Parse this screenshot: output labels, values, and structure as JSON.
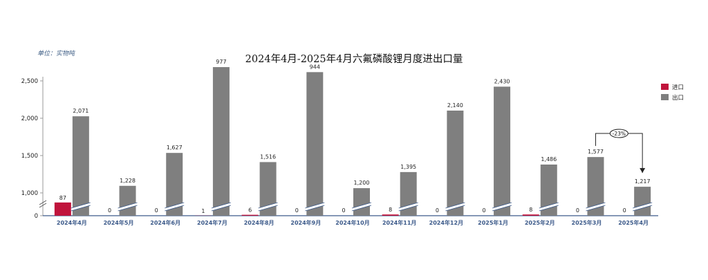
{
  "chart_data": {
    "type": "bar",
    "title": "2024年4月-2025年4月六氟磷酸锂月度进出口量",
    "unit_label": "单位：实物吨",
    "categories": [
      "2024年4月",
      "2024年5月",
      "2024年6月",
      "2024年7月",
      "2024年8月",
      "2024年9月",
      "2024年10月",
      "2024年11月",
      "2024年12月",
      "2025年1月",
      "2025年2月",
      "2025年3月",
      "2025年4月"
    ],
    "series": [
      {
        "name": "进口",
        "color": "#c0143c",
        "values": [
          87,
          0,
          0,
          1,
          6,
          0,
          0,
          8,
          0,
          0,
          8,
          0,
          0
        ],
        "labels": [
          "87",
          "0",
          "0",
          "1",
          "6",
          "0",
          "0",
          "8",
          "0",
          "0",
          "8",
          "0",
          "0"
        ]
      },
      {
        "name": "出口",
        "color": "#7f7f7f",
        "values": [
          2071,
          1228,
          1627,
          977,
          1516,
          944,
          1200,
          1395,
          2140,
          2430,
          1486,
          1577,
          1217
        ],
        "labels": [
          "2,071",
          "1,228",
          "1,627",
          "977",
          "1,516",
          "944",
          "1,200",
          "1,395",
          "2,140",
          "2,430",
          "1,486",
          "1,577",
          "1,217"
        ]
      }
    ],
    "y_ticks": [
      "0",
      "1,000",
      "1,500",
      "2,000",
      "2,500"
    ],
    "y_tick_values": [
      0,
      1000,
      1500,
      2000,
      2500
    ],
    "ylim": [
      0,
      2500
    ],
    "axis_break": true,
    "annotation": {
      "text": "-23%",
      "from": "2025年3月",
      "to": "2025年4月"
    },
    "grid": false,
    "legend_position": "right"
  }
}
